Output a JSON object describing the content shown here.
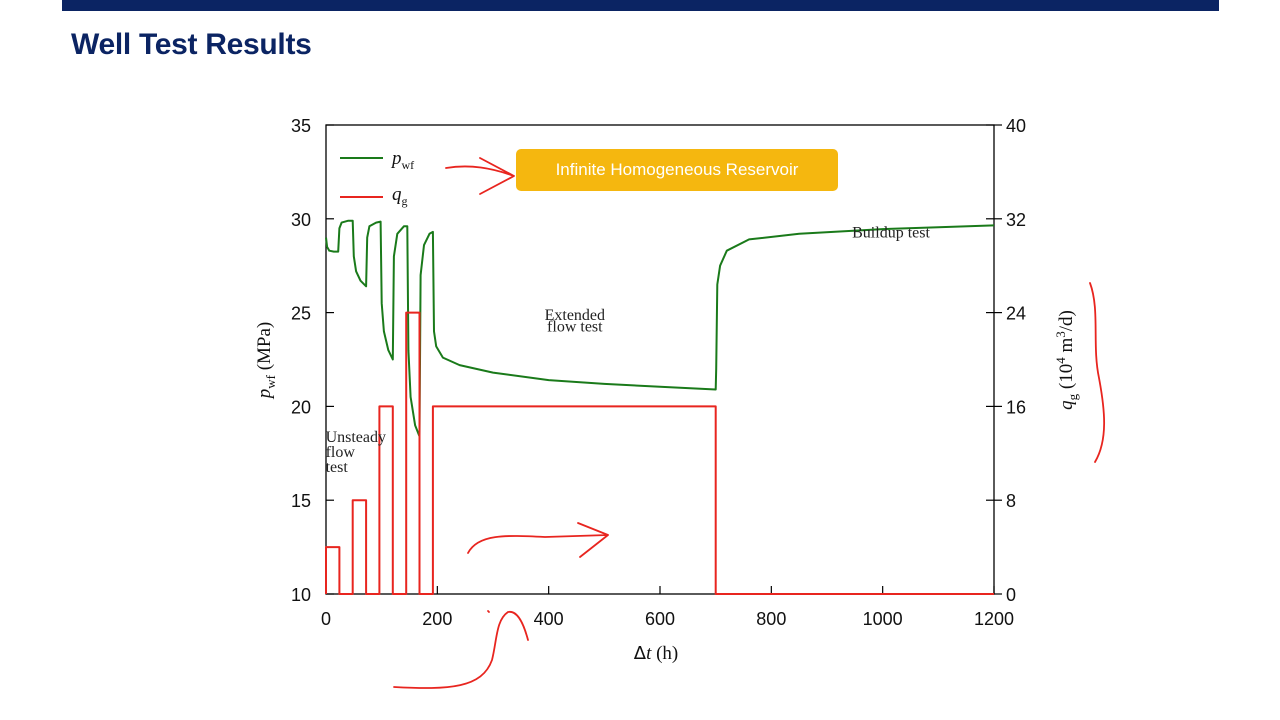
{
  "slide": {
    "title": "Well Test Results"
  },
  "callout": {
    "text": "Infinite Homogeneous Reservoir",
    "color": "#f5b70f"
  },
  "chart_data": {
    "type": "line",
    "xlabel": "Δt (h)",
    "xlim": [
      0,
      1200
    ],
    "x_ticks": [
      0,
      200,
      400,
      600,
      800,
      1000,
      1200
    ],
    "ylabel_left": "pwf (MPa)",
    "ylim_left": [
      10,
      35
    ],
    "y_ticks_left": [
      10,
      15,
      20,
      25,
      30,
      35
    ],
    "ylabel_right": "qg (10⁴ m³/d)",
    "ylim_right": [
      0,
      40
    ],
    "y_ticks_right": [
      0,
      8,
      16,
      24,
      32,
      40
    ],
    "legend_placement": "top-left",
    "series": [
      {
        "name": "pwf",
        "axis": "left",
        "color": "#1a7a1a",
        "points": [
          [
            0,
            29.0
          ],
          [
            2,
            28.5
          ],
          [
            6,
            28.3
          ],
          [
            14,
            28.25
          ],
          [
            22,
            28.25
          ],
          [
            24,
            29.5
          ],
          [
            28,
            29.8
          ],
          [
            40,
            29.9
          ],
          [
            48,
            29.9
          ],
          [
            50,
            28.0
          ],
          [
            54,
            27.2
          ],
          [
            62,
            26.7
          ],
          [
            72,
            26.4
          ],
          [
            74,
            29.0
          ],
          [
            78,
            29.6
          ],
          [
            90,
            29.8
          ],
          [
            98,
            29.85
          ],
          [
            100,
            25.5
          ],
          [
            104,
            24.0
          ],
          [
            112,
            23.0
          ],
          [
            120,
            22.5
          ],
          [
            122,
            28.0
          ],
          [
            128,
            29.2
          ],
          [
            140,
            29.6
          ],
          [
            146,
            29.6
          ],
          [
            148,
            23.0
          ],
          [
            152,
            20.5
          ],
          [
            160,
            19.0
          ],
          [
            168,
            18.4
          ],
          [
            170,
            27.0
          ],
          [
            176,
            28.6
          ],
          [
            186,
            29.2
          ],
          [
            192,
            29.3
          ],
          [
            194,
            24.0
          ],
          [
            198,
            23.2
          ],
          [
            210,
            22.6
          ],
          [
            240,
            22.2
          ],
          [
            300,
            21.8
          ],
          [
            400,
            21.4
          ],
          [
            500,
            21.2
          ],
          [
            600,
            21.05
          ],
          [
            700,
            20.9
          ],
          [
            701,
            22.0
          ],
          [
            703,
            26.5
          ],
          [
            708,
            27.5
          ],
          [
            720,
            28.3
          ],
          [
            760,
            28.9
          ],
          [
            850,
            29.2
          ],
          [
            1000,
            29.45
          ],
          [
            1100,
            29.55
          ],
          [
            1200,
            29.65
          ]
        ]
      },
      {
        "name": "qg",
        "axis": "right",
        "color": "#e8251f",
        "points": [
          [
            0,
            0
          ],
          [
            0,
            4
          ],
          [
            24,
            4
          ],
          [
            24,
            0
          ],
          [
            48,
            0
          ],
          [
            48,
            8
          ],
          [
            72,
            8
          ],
          [
            72,
            0
          ],
          [
            96,
            0
          ],
          [
            96,
            16
          ],
          [
            120,
            16
          ],
          [
            120,
            0
          ],
          [
            144,
            0
          ],
          [
            144,
            24
          ],
          [
            168,
            24
          ],
          [
            168,
            0
          ],
          [
            192,
            0
          ],
          [
            192,
            16
          ],
          [
            700,
            16
          ],
          [
            700,
            0
          ],
          [
            1200,
            0
          ]
        ]
      }
    ],
    "annotations": [
      {
        "text": "Extended",
        "x": 447,
        "y": 24.6
      },
      {
        "text": "flow test",
        "x": 447,
        "y": 24.0
      },
      {
        "text": "Buildup test",
        "x": 1015,
        "y": 29.0
      },
      {
        "text": "Unsteady",
        "x": 10,
        "y": 18.1
      },
      {
        "text": "flow",
        "x": 10,
        "y": 17.3
      },
      {
        "text": "test",
        "x": 10,
        "y": 16.5
      }
    ],
    "ink_color": "#e8251f"
  }
}
